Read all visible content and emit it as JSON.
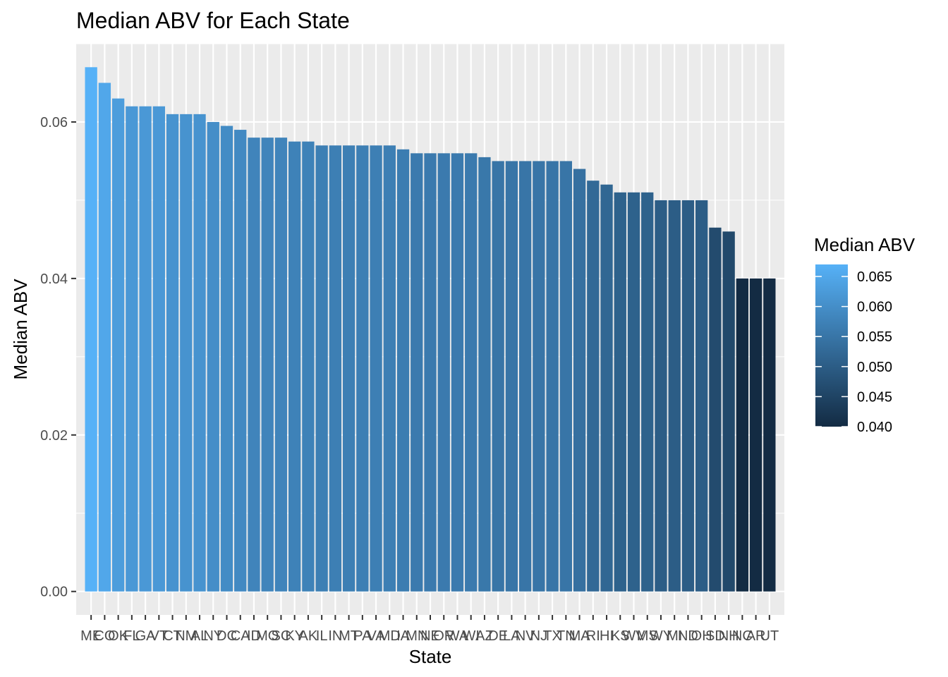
{
  "chart_data": {
    "type": "bar",
    "title": "Median ABV for Each State",
    "xlabel": "State",
    "ylabel": "Median ABV",
    "ylim": [
      -0.003,
      0.07
    ],
    "yticks": [
      0.0,
      0.02,
      0.04,
      0.06
    ],
    "ytick_labels": [
      "0.00",
      "0.02",
      "0.04",
      "0.06"
    ],
    "grid": true,
    "categories": [
      "ME",
      "CO",
      "OK",
      "FL",
      "GA",
      "VT",
      "CT",
      "NM",
      "AL",
      "NY",
      "DC",
      "CA",
      "ID",
      "MO",
      "SC",
      "KY",
      "AK",
      "IL",
      "IN",
      "MT",
      "PA",
      "VA",
      "MD",
      "IA",
      "MN",
      "NE",
      "OR",
      "WA",
      "WI",
      "AZ",
      "DE",
      "LA",
      "NV",
      "NJ",
      "TX",
      "TN",
      "MA",
      "RI",
      "HI",
      "KS",
      "WV",
      "MS",
      "WY",
      "MI",
      "ND",
      "OH",
      "SD",
      "NH",
      "NC",
      "AR",
      "UT"
    ],
    "values": [
      0.067,
      0.065,
      0.063,
      0.062,
      0.062,
      0.062,
      0.061,
      0.061,
      0.061,
      0.06,
      0.0595,
      0.059,
      0.058,
      0.058,
      0.058,
      0.0575,
      0.0575,
      0.057,
      0.057,
      0.057,
      0.057,
      0.057,
      0.057,
      0.0565,
      0.056,
      0.056,
      0.056,
      0.056,
      0.056,
      0.0555,
      0.055,
      0.055,
      0.055,
      0.055,
      0.055,
      0.055,
      0.054,
      0.0525,
      0.052,
      0.051,
      0.051,
      0.051,
      0.05,
      0.05,
      0.05,
      0.05,
      0.0465,
      0.046,
      0.04,
      0.04,
      0.04
    ],
    "legend": {
      "title": "Median ABV",
      "position": "right",
      "ticks": [
        0.065,
        0.06,
        0.055,
        0.05,
        0.045,
        0.04
      ],
      "tick_labels": [
        "0.065",
        "0.060",
        "0.055",
        "0.050",
        "0.045",
        "0.040"
      ],
      "range": [
        0.04,
        0.067
      ],
      "color_low": "#132b43",
      "color_high": "#56b1f7"
    },
    "colors": {
      "panel": "#ebebeb",
      "grid": "#ffffff",
      "tick_text": "#4d4d4d"
    }
  }
}
